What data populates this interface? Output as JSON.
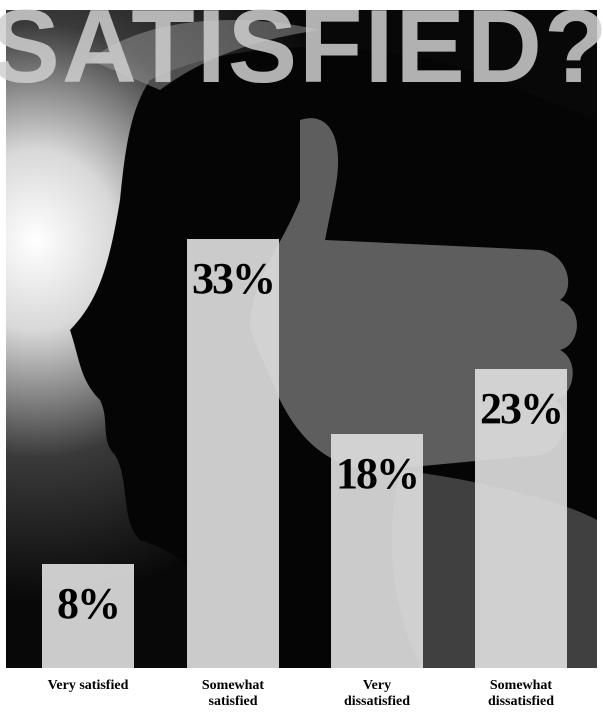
{
  "chart_data": {
    "type": "bar",
    "title": "SATISFIED?",
    "categories": [
      "Very satisfied",
      "Somewhat satisfied",
      "Very dissatisfied",
      "Somewhat dissatisfied"
    ],
    "values": [
      8,
      33,
      18,
      23
    ],
    "value_labels": [
      "8%",
      "33%",
      "18%",
      "23%"
    ],
    "color": "#dcdcdc"
  }
}
